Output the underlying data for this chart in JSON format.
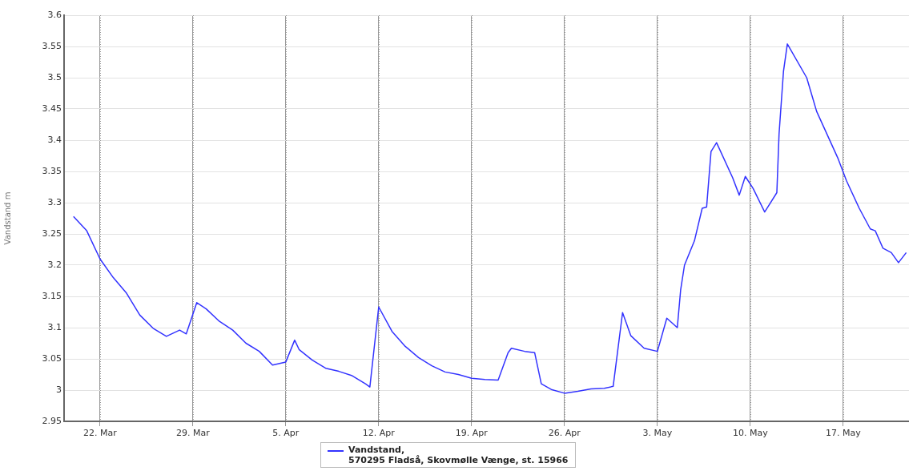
{
  "chart_data": {
    "type": "line",
    "ylabel": "Vandstand m",
    "x": [
      "--03-20",
      "--03-21",
      "--03-22",
      "--03-23",
      "--03-24",
      "--03-25",
      "--03-26",
      "--03-27",
      "--03-28",
      "--03-28T12:00",
      "--03-29T07:00",
      "--03-30",
      "--03-31",
      "--04-01",
      "--04-02",
      "--04-03",
      "--04-04",
      "--04-05",
      "--04-05T16:00",
      "--04-06",
      "--04-07",
      "--04-08",
      "--04-09",
      "--04-10",
      "--04-11",
      "--04-11T08:00",
      "--04-12",
      "--04-13",
      "--04-14",
      "--04-15",
      "--04-16",
      "--04-17",
      "--04-18",
      "--04-19",
      "--04-20",
      "--04-21",
      "--04-21T18:00",
      "--04-22",
      "--04-23",
      "--04-23T18:00",
      "--04-24T06:00",
      "--04-25",
      "--04-26",
      "--04-27",
      "--04-28",
      "--04-29",
      "--04-29T16:00",
      "--04-30T09:00",
      "--05-01",
      "--05-02",
      "--05-03",
      "--05-03T17:00",
      "--05-04T12:00",
      "--05-04T18:00",
      "--05-05T01:00",
      "--05-05T19:00",
      "--05-06T09:00",
      "--05-06T17:00",
      "--05-07T01:00",
      "--05-07T11:00",
      "--05-08T16:00",
      "--05-09T04:00",
      "--05-09T15:00",
      "--05-10T05:00",
      "--05-11T02:00",
      "--05-12T00:00",
      "--05-12T04:00",
      "--05-12T12:00",
      "--05-12T19:00",
      "--05-14T06:00",
      "--05-15T00:00",
      "--05-16T15:00",
      "--05-17T06:00",
      "--05-18T05:00",
      "--05-19T01:00",
      "--05-19T10:00",
      "--05-20T00:00",
      "--05-20T15:00",
      "--05-21T04:00",
      "--05-21T18:00"
    ],
    "series": [
      {
        "name": "Vandstand,\n570295 Fladså, Skovmølle Vænge, st. 15966",
        "color": "#3333ff",
        "values": [
          3.278,
          3.255,
          3.21,
          3.18,
          3.155,
          3.12,
          3.099,
          3.086,
          3.096,
          3.09,
          3.14,
          3.13,
          3.11,
          3.096,
          3.075,
          3.062,
          3.04,
          3.045,
          3.08,
          3.065,
          3.048,
          3.035,
          3.03,
          3.023,
          3.01,
          3.005,
          3.133,
          3.094,
          3.07,
          3.052,
          3.039,
          3.029,
          3.025,
          3.019,
          3.017,
          3.016,
          3.06,
          3.067,
          3.062,
          3.06,
          3.01,
          3.001,
          2.995,
          2.998,
          3.002,
          3.003,
          3.006,
          3.124,
          3.087,
          3.067,
          3.062,
          3.115,
          3.1,
          3.16,
          3.2,
          3.239,
          3.291,
          3.293,
          3.382,
          3.396,
          3.34,
          3.312,
          3.342,
          3.323,
          3.285,
          3.316,
          3.41,
          3.51,
          3.554,
          3.5,
          3.446,
          3.37,
          3.335,
          3.291,
          3.258,
          3.255,
          3.227,
          3.22,
          3.204,
          3.22
        ]
      }
    ],
    "xlim": [
      "--03-19T07:00",
      "--05-21T23:00"
    ],
    "xticks": [
      {
        "value": "--03-22",
        "label": "22. Mar"
      },
      {
        "value": "--03-29",
        "label": "29. Mar"
      },
      {
        "value": "--04-05",
        "label": "5. Apr"
      },
      {
        "value": "--04-12",
        "label": "12. Apr"
      },
      {
        "value": "--04-19",
        "label": "19. Apr"
      },
      {
        "value": "--04-26",
        "label": "26. Apr"
      },
      {
        "value": "--05-03",
        "label": "3. May"
      },
      {
        "value": "--05-10",
        "label": "10. May"
      },
      {
        "value": "--05-17",
        "label": "17. May"
      }
    ],
    "ylim": [
      2.95,
      3.6
    ],
    "yticks": [
      2.95,
      3,
      3.05,
      3.1,
      3.15,
      3.2,
      3.25,
      3.3,
      3.35,
      3.4,
      3.45,
      3.5,
      3.55,
      3.6
    ],
    "grid": true,
    "legend": "bottom",
    "marker": "none",
    "line_style": "solid"
  }
}
